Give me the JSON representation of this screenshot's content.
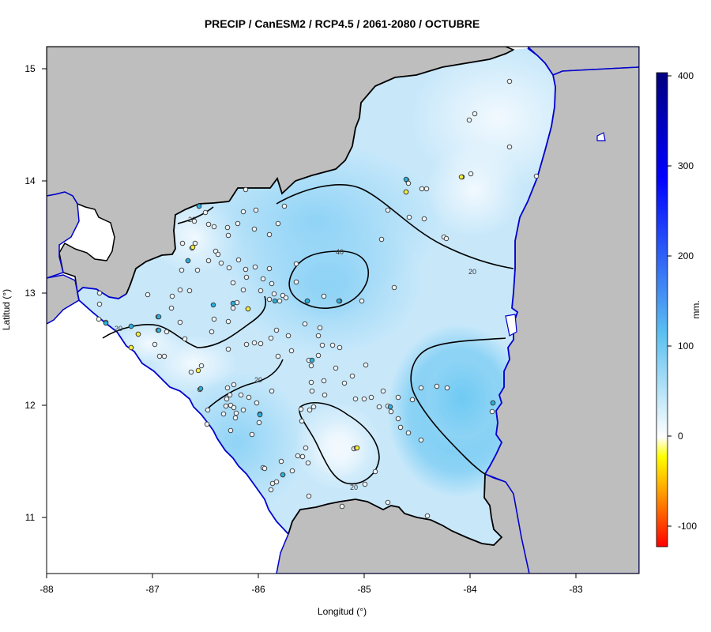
{
  "map": {
    "title": "PRECIP / CanESM2 / RCP4.5 / 2061-2080 / OCTUBRE",
    "x_axis": {
      "label": "Longitud (°)",
      "ticks": [
        "-88",
        "-87",
        "-86",
        "-85",
        "-84",
        "-83"
      ],
      "range": [
        -88,
        -82.4
      ]
    },
    "y_axis": {
      "label": "Latitud (°)",
      "ticks": [
        "11",
        "12",
        "13",
        "14",
        "15"
      ],
      "range": [
        10.5,
        15.2
      ]
    },
    "contour_labels": [
      "20",
      "40",
      "20",
      "20",
      "20",
      "20"
    ],
    "colorbar": {
      "unit": "mm.",
      "ticks": [
        "400",
        "300",
        "200",
        "100",
        "0",
        "-100"
      ],
      "range": [
        -120,
        400
      ],
      "stops": [
        "#ff0000",
        "#ffa500",
        "#ffff00",
        "#ffffff",
        "#5bc0f0",
        "#0000ff",
        "#00007f"
      ]
    },
    "colors": {
      "land_outside": "#bebebe",
      "sea": "#ffffff",
      "coastline": "#0000cd",
      "border": "#000000"
    }
  }
}
